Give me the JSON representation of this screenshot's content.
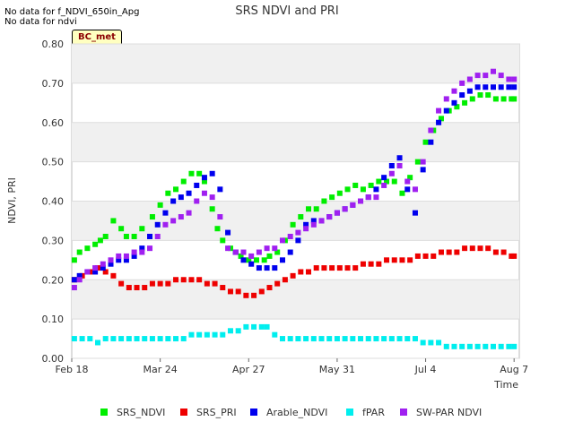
{
  "notes": [
    "No data for f_NDVI_650in_Apg",
    "No data for ndvi"
  ],
  "badge": "BC_met",
  "colors": {
    "SRS_NDVI": "#00ee00",
    "SRS_PRI": "#ee0000",
    "Arable_NDVI": "#0000ee",
    "fPAR": "#00eeee",
    "SW-PAR NDVI": "#a020f0"
  },
  "chart_data": {
    "type": "scatter",
    "title": "SRS NDVI and PRI",
    "xlabel": "Time",
    "ylabel": "NDVI, PRI",
    "x_unit": "day_of_year_2025",
    "xlim": [
      49,
      221
    ],
    "ylim": [
      0,
      0.8
    ],
    "grid": true,
    "legend_position": "bottom",
    "x_ticks": [
      {
        "x": 49,
        "label": "Feb 18"
      },
      {
        "x": 83,
        "label": "Mar 24"
      },
      {
        "x": 117,
        "label": "Apr 27"
      },
      {
        "x": 151,
        "label": "May 31"
      },
      {
        "x": 185,
        "label": "Jul 4"
      },
      {
        "x": 219,
        "label": "Aug 7"
      }
    ],
    "y_ticks": [
      0.0,
      0.1,
      0.2,
      0.3,
      0.4,
      0.5,
      0.6,
      0.7,
      0.8
    ],
    "y_tick_labels": [
      "0.00",
      "0.10",
      "0.20",
      "0.30",
      "0.40",
      "0.50",
      "0.60",
      "0.70",
      "0.80"
    ],
    "series": [
      {
        "name": "SRS_NDVI",
        "x": [
          50,
          52,
          55,
          58,
          60,
          62,
          65,
          68,
          70,
          73,
          76,
          80,
          83,
          86,
          89,
          92,
          95,
          98,
          100,
          103,
          105,
          107,
          110,
          112,
          114,
          117,
          120,
          123,
          125,
          128,
          131,
          134,
          137,
          140,
          143,
          146,
          149,
          152,
          155,
          158,
          161,
          164,
          167,
          170,
          173,
          176,
          179,
          182,
          185,
          188,
          191,
          194,
          197,
          200,
          203,
          206,
          209,
          212,
          215,
          218,
          219
        ],
        "y": [
          0.25,
          0.27,
          0.28,
          0.29,
          0.3,
          0.31,
          0.35,
          0.33,
          0.31,
          0.31,
          0.33,
          0.36,
          0.39,
          0.42,
          0.43,
          0.45,
          0.47,
          0.47,
          0.45,
          0.38,
          0.33,
          0.3,
          0.28,
          0.27,
          0.26,
          0.25,
          0.25,
          0.25,
          0.26,
          0.27,
          0.3,
          0.34,
          0.36,
          0.38,
          0.38,
          0.4,
          0.41,
          0.42,
          0.43,
          0.44,
          0.43,
          0.44,
          0.45,
          0.45,
          0.45,
          0.42,
          0.46,
          0.5,
          0.55,
          0.58,
          0.61,
          0.63,
          0.64,
          0.65,
          0.66,
          0.67,
          0.67,
          0.66,
          0.66,
          0.66,
          0.66
        ]
      },
      {
        "name": "SRS_PRI",
        "x": [
          50,
          53,
          56,
          59,
          62,
          65,
          68,
          71,
          74,
          77,
          80,
          83,
          86,
          89,
          92,
          95,
          98,
          101,
          104,
          107,
          110,
          113,
          116,
          119,
          122,
          125,
          128,
          131,
          134,
          137,
          140,
          143,
          146,
          149,
          152,
          155,
          158,
          161,
          164,
          167,
          170,
          173,
          176,
          179,
          182,
          185,
          188,
          191,
          194,
          197,
          200,
          203,
          206,
          209,
          212,
          215,
          218,
          219
        ],
        "y": [
          0.2,
          0.21,
          0.22,
          0.23,
          0.22,
          0.21,
          0.19,
          0.18,
          0.18,
          0.18,
          0.19,
          0.19,
          0.19,
          0.2,
          0.2,
          0.2,
          0.2,
          0.19,
          0.19,
          0.18,
          0.17,
          0.17,
          0.16,
          0.16,
          0.17,
          0.18,
          0.19,
          0.2,
          0.21,
          0.22,
          0.22,
          0.23,
          0.23,
          0.23,
          0.23,
          0.23,
          0.23,
          0.24,
          0.24,
          0.24,
          0.25,
          0.25,
          0.25,
          0.25,
          0.26,
          0.26,
          0.26,
          0.27,
          0.27,
          0.27,
          0.28,
          0.28,
          0.28,
          0.28,
          0.27,
          0.27,
          0.26,
          0.26
        ]
      },
      {
        "name": "Arable_NDVI",
        "x": [
          50,
          52,
          55,
          58,
          61,
          64,
          67,
          70,
          73,
          76,
          79,
          82,
          85,
          88,
          91,
          94,
          97,
          100,
          103,
          106,
          109,
          112,
          115,
          118,
          121,
          124,
          127,
          130,
          133,
          136,
          139,
          142,
          145,
          148,
          151,
          154,
          157,
          160,
          163,
          166,
          169,
          172,
          175,
          178,
          181,
          184,
          187,
          190,
          193,
          196,
          199,
          202,
          205,
          208,
          211,
          214,
          217,
          219
        ],
        "y": [
          0.2,
          0.21,
          0.22,
          0.22,
          0.23,
          0.24,
          0.25,
          0.25,
          0.26,
          0.28,
          0.31,
          0.34,
          0.37,
          0.4,
          0.41,
          0.42,
          0.44,
          0.46,
          0.47,
          0.43,
          0.32,
          0.27,
          0.25,
          0.24,
          0.23,
          0.23,
          0.23,
          0.25,
          0.27,
          0.3,
          0.34,
          0.35,
          0.35,
          0.36,
          0.37,
          0.38,
          0.39,
          0.4,
          0.41,
          0.43,
          0.46,
          0.49,
          0.51,
          0.43,
          0.37,
          0.48,
          0.55,
          0.6,
          0.63,
          0.65,
          0.67,
          0.68,
          0.69,
          0.69,
          0.69,
          0.69,
          0.69,
          0.69
        ]
      },
      {
        "name": "fPAR",
        "x": [
          50,
          53,
          56,
          59,
          62,
          65,
          68,
          71,
          74,
          77,
          80,
          83,
          86,
          89,
          92,
          95,
          98,
          101,
          104,
          107,
          110,
          113,
          116,
          119,
          122,
          124,
          127,
          130,
          133,
          136,
          139,
          142,
          145,
          148,
          151,
          154,
          157,
          160,
          163,
          166,
          169,
          172,
          175,
          178,
          181,
          184,
          187,
          190,
          193,
          196,
          199,
          202,
          205,
          208,
          211,
          214,
          217,
          219
        ],
        "y": [
          0.05,
          0.05,
          0.05,
          0.04,
          0.05,
          0.05,
          0.05,
          0.05,
          0.05,
          0.05,
          0.05,
          0.05,
          0.05,
          0.05,
          0.05,
          0.06,
          0.06,
          0.06,
          0.06,
          0.06,
          0.07,
          0.07,
          0.08,
          0.08,
          0.08,
          0.08,
          0.06,
          0.05,
          0.05,
          0.05,
          0.05,
          0.05,
          0.05,
          0.05,
          0.05,
          0.05,
          0.05,
          0.05,
          0.05,
          0.05,
          0.05,
          0.05,
          0.05,
          0.05,
          0.05,
          0.04,
          0.04,
          0.04,
          0.03,
          0.03,
          0.03,
          0.03,
          0.03,
          0.03,
          0.03,
          0.03,
          0.03,
          0.03
        ]
      },
      {
        "name": "SW-PAR NDVI",
        "x": [
          50,
          52,
          55,
          58,
          61,
          64,
          67,
          70,
          73,
          76,
          79,
          82,
          85,
          88,
          91,
          94,
          97,
          100,
          103,
          106,
          109,
          112,
          115,
          118,
          121,
          124,
          127,
          130,
          133,
          136,
          139,
          142,
          145,
          148,
          151,
          154,
          157,
          160,
          163,
          166,
          169,
          172,
          175,
          178,
          181,
          184,
          187,
          190,
          193,
          196,
          199,
          202,
          205,
          208,
          211,
          214,
          217,
          219
        ],
        "y": [
          0.18,
          0.2,
          0.22,
          0.23,
          0.24,
          0.25,
          0.26,
          0.26,
          0.27,
          0.27,
          0.28,
          0.31,
          0.34,
          0.35,
          0.36,
          0.37,
          0.4,
          0.42,
          0.41,
          0.36,
          0.28,
          0.27,
          0.27,
          0.26,
          0.27,
          0.28,
          0.28,
          0.3,
          0.31,
          0.32,
          0.33,
          0.34,
          0.35,
          0.36,
          0.37,
          0.38,
          0.39,
          0.4,
          0.41,
          0.41,
          0.44,
          0.47,
          0.49,
          0.45,
          0.43,
          0.5,
          0.58,
          0.63,
          0.66,
          0.68,
          0.7,
          0.71,
          0.72,
          0.72,
          0.73,
          0.72,
          0.71,
          0.71
        ]
      }
    ]
  }
}
